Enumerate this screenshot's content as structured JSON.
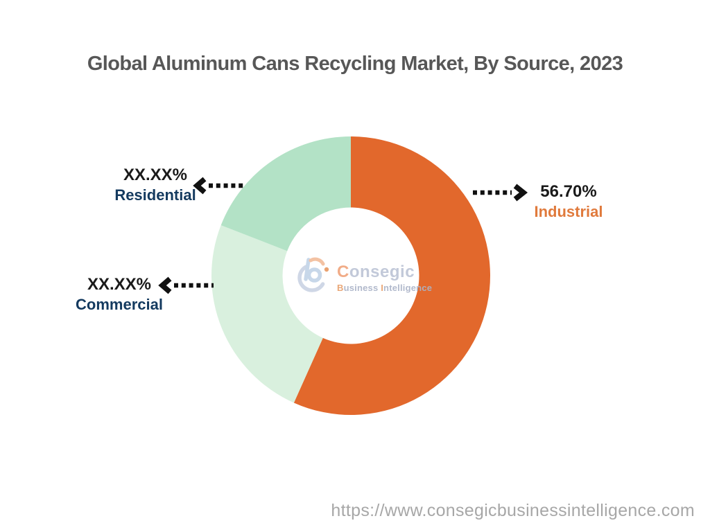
{
  "title": "Global Aluminum Cans Recycling Market, By Source, 2023",
  "chart_data": {
    "type": "pie",
    "variant": "donut",
    "title": "Global Aluminum Cans Recycling Market, By Source, 2023",
    "direction": "clockwise",
    "start_angle_deg": 0,
    "inner_radius_ratio": 0.49,
    "legend_position": "none",
    "segments": [
      {
        "name": "Industrial",
        "display_value": "56.70%",
        "value": 56.7,
        "color": "#E2682C",
        "label_color": "#E07A3C"
      },
      {
        "name": "Commercial",
        "display_value": "XX.XX%",
        "value": 24.2,
        "color": "#D9F0DE",
        "label_color": "#143A5F"
      },
      {
        "name": "Residential",
        "display_value": "XX.XX%",
        "value": 19.1,
        "color": "#B3E2C6",
        "label_color": "#143A5F"
      }
    ]
  },
  "logo": {
    "brand_initial": "C",
    "brand_rest": "onsegic",
    "tagline_initial_1": "B",
    "tagline_part_1": "usiness",
    "tagline_initial_2": "I",
    "tagline_part_2": "ntelligence"
  },
  "footer": {
    "url": "https://www.consegicbusinessintelligence.com"
  },
  "colors": {
    "accent_orange": "#E2682C",
    "green_medium": "#B3E2C6",
    "green_light": "#D9F0DE",
    "navy_label": "#143A5F",
    "value_black": "#1A1A1A",
    "title_gray": "#575757",
    "url_gray": "#A7A7A7",
    "arrow_black": "#111111"
  }
}
